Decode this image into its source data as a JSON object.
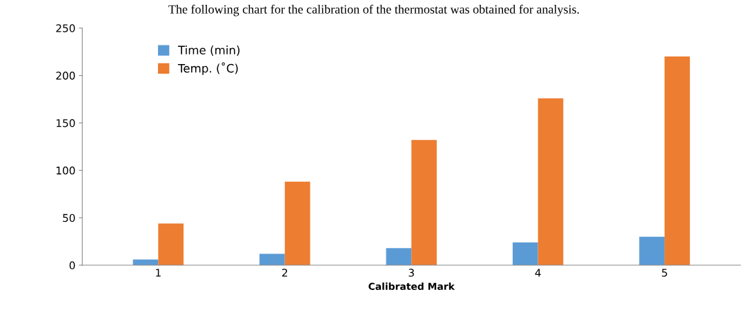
{
  "chart_data": {
    "type": "bar",
    "title": "The following chart for the calibration of the thermostat was obtained for analysis.",
    "xlabel": "Calibrated Mark",
    "categories": [
      "1",
      "2",
      "3",
      "4",
      "5"
    ],
    "series": [
      {
        "name": "Time (min)",
        "color": "#5b9bd5",
        "values": [
          6,
          12,
          18,
          24,
          30
        ]
      },
      {
        "name": "Temp. (˚C)",
        "color": "#ed7d31",
        "values": [
          44,
          88,
          132,
          176,
          220
        ]
      }
    ],
    "ylim": [
      0,
      250
    ],
    "yticks": [
      0,
      50,
      100,
      150,
      200,
      250
    ],
    "grid": false,
    "legend": "top left"
  }
}
